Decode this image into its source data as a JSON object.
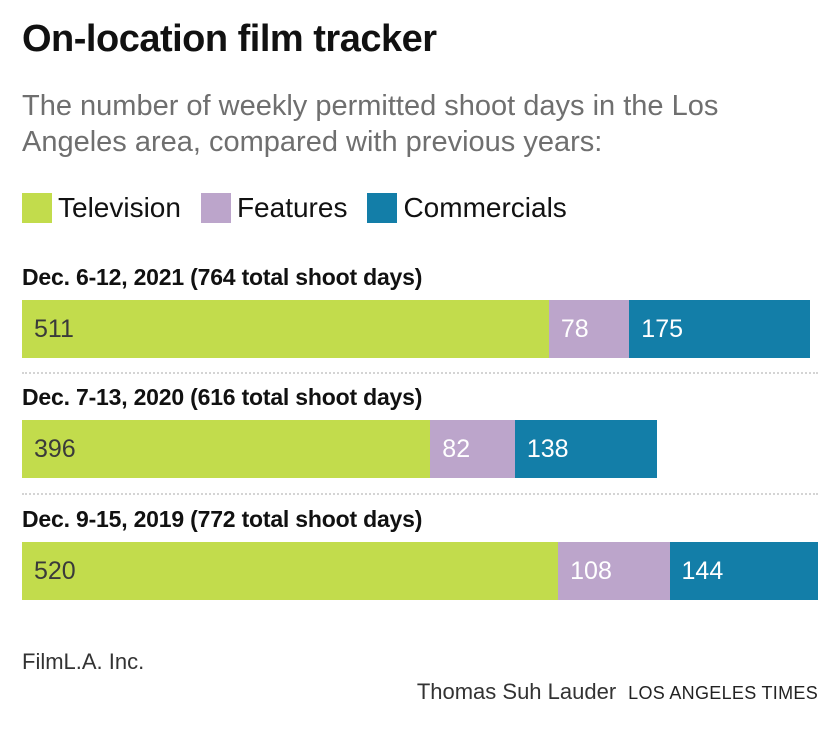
{
  "header": {
    "title": "On-location film tracker",
    "subtitle": "The number of weekly permitted shoot days in the Los Angeles area, compared with previous years:"
  },
  "legend": [
    {
      "label": "Television",
      "color": "#c2dc4c"
    },
    {
      "label": "Features",
      "color": "#bca5cb"
    },
    {
      "label": "Commercials",
      "color": "#137ea8"
    }
  ],
  "footer": {
    "source": "FilmL.A. Inc.",
    "author": "Thomas Suh Lauder",
    "organization": "LOS ANGELES TIMES"
  },
  "chart_data": {
    "type": "bar",
    "orientation": "horizontal",
    "stacked": true,
    "title": "On-location film tracker",
    "subtitle": "The number of weekly permitted shoot days in the Los Angeles area, compared with previous years:",
    "categories": [
      "Dec. 6-12, 2021 (764 total shoot days)",
      "Dec. 7-13, 2020 (616 total shoot days)",
      "Dec. 9-15, 2019 (772 total shoot days)"
    ],
    "series": [
      {
        "name": "Television",
        "color": "#c2dc4c",
        "values": [
          511,
          396,
          520
        ]
      },
      {
        "name": "Features",
        "color": "#bca5cb",
        "values": [
          78,
          82,
          108
        ]
      },
      {
        "name": "Commercials",
        "color": "#137ea8",
        "values": [
          175,
          138,
          144
        ]
      }
    ],
    "xlim": [
      0,
      772
    ],
    "grid": false,
    "legend_position": "top-left"
  }
}
